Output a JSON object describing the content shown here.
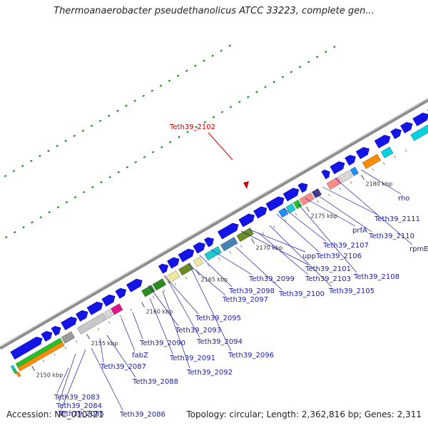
{
  "title": "Thermoanaerobacter pseudethanolicus ATCC 33223, complete gen...",
  "footer": {
    "accession": "Accession: NC_010321",
    "topology": "Topology: circular; Length: 2,362,816 bp; Genes: 2,311"
  },
  "highlight_gene": "Teth39_2102",
  "scale_labels": [
    "2150 kbp",
    "2155 kbp",
    "2160 kbp",
    "2165 kbp",
    "2170 kbp",
    "2175 kbp",
    "2180 kbp"
  ],
  "gene_labels": [
    "Teth39_2083",
    "Teth39_2084",
    "Teth39_2085",
    "Teth39_2086",
    "Teth39_2087",
    "Teth39_2088",
    "fabZ",
    "Teth39_2090",
    "Teth39_2091",
    "Teth39_2092",
    "Teth39_2093",
    "Teth39_2094",
    "Teth39_2095",
    "Teth39_2096",
    "Teth39_2097",
    "Teth39_2098",
    "Teth39_2099",
    "Teth39_2100",
    "Teth39_2101",
    "upp",
    "Teth39_2103",
    "Teth39_2105",
    "Teth39_2106",
    "Teth39_2107",
    "Teth39_2108",
    "prfA",
    "Teth39_2110",
    "Teth39_2111",
    "rpmE",
    "rho"
  ],
  "colors": {
    "backbone": "#8c8c8c",
    "cds_arrow": "#1414e6",
    "gc_skew_dots": "#1e8c1e",
    "label_text": "#1a1aa8",
    "highlight": "#cc0000",
    "feature_palette": [
      "#ff8c00",
      "#22c322",
      "#00d0e0",
      "#9a9a9a",
      "#c8c8c8",
      "#e0158a",
      "#2e8b22",
      "#eee8a0",
      "#6b8e23",
      "#4682b4",
      "#20c8d0",
      "#ff8a8a",
      "#483d8b",
      "#d8d8d8",
      "#1e90ff"
    ]
  }
}
